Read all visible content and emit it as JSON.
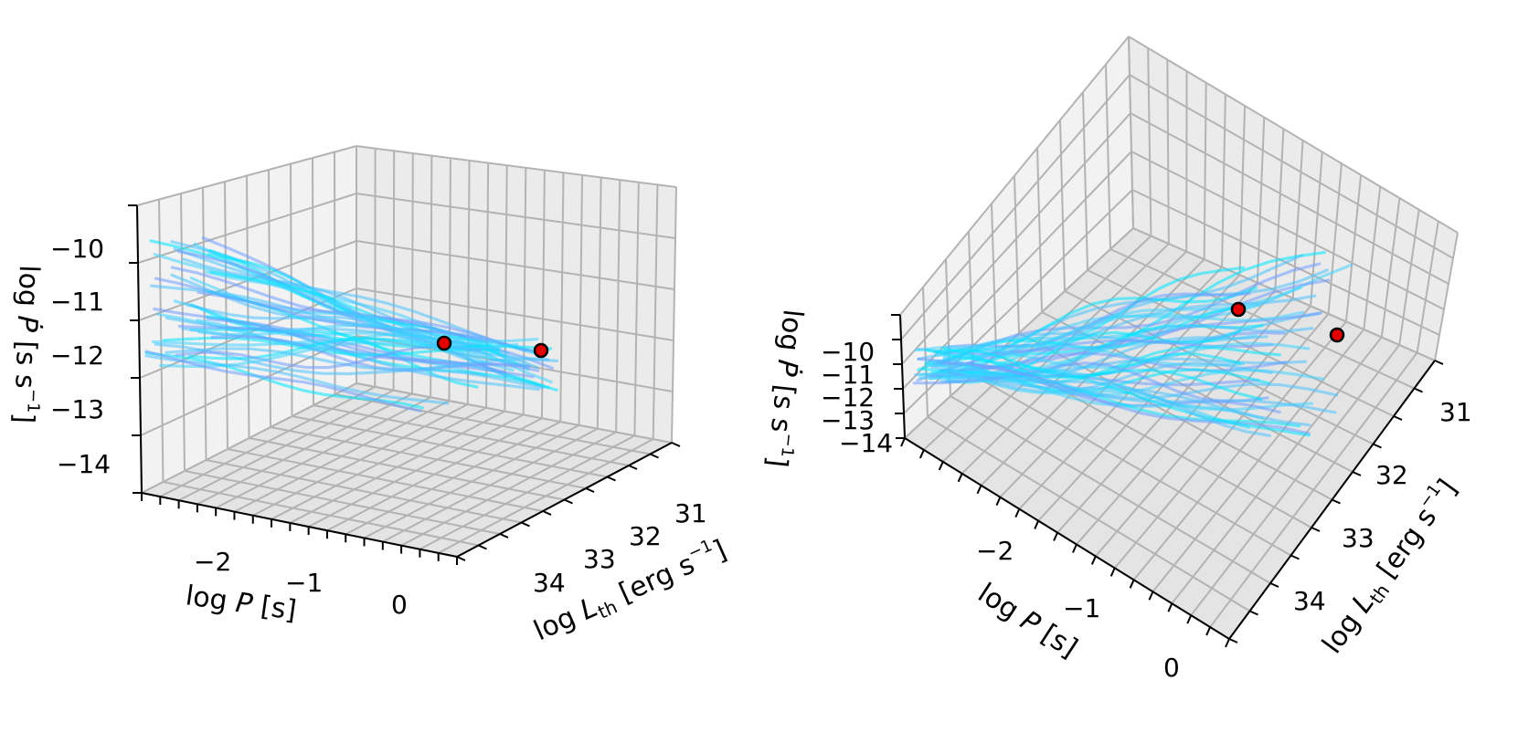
{
  "chart_data": [
    {
      "type": "line",
      "title": "",
      "xlabel": "log P [s]",
      "ylabel": "log L_th [erg s^-1]",
      "zlabel": "log Ṗ [s s^-1]",
      "x_ticks": [
        "−2",
        "−1",
        "0"
      ],
      "y_ticks": [
        "31",
        "32",
        "33",
        "34"
      ],
      "z_ticks": [
        "−10",
        "−11",
        "−12",
        "−13",
        "−14"
      ],
      "xlim": [
        -3,
        0.5
      ],
      "ylim": [
        30.5,
        34.5
      ],
      "zlim": [
        -14.5,
        -9.5
      ],
      "grid": true,
      "series_colors": [
        "#00e5ff",
        "#4dc3ff",
        "#6f9dff",
        "#3fd4ff"
      ],
      "markers": [
        {
          "x": 0.0,
          "y": 32.1,
          "z": -12.3,
          "color": "#e00000"
        },
        {
          "x": 0.4,
          "y": 31.1,
          "z": -12.6,
          "color": "#e00000"
        }
      ]
    },
    {
      "type": "line",
      "title": "",
      "xlabel": "log P [s]",
      "ylabel": "log L_th [erg s^-1]",
      "zlabel": "log Ṗ [s s^-1]",
      "x_ticks": [
        "−2",
        "−1",
        "0"
      ],
      "y_ticks": [
        "31",
        "32",
        "33",
        "34"
      ],
      "z_ticks": [
        "−10",
        "−11",
        "−12",
        "−13",
        "−14"
      ],
      "grid": true,
      "series_colors": [
        "#00e5ff",
        "#4dc3ff",
        "#6f9dff",
        "#3fd4ff"
      ],
      "markers": [
        {
          "x": 0.0,
          "y": 32.1,
          "z": -12.3,
          "color": "#e00000"
        },
        {
          "x": 0.4,
          "y": 31.1,
          "z": -12.6,
          "color": "#e00000"
        }
      ]
    }
  ],
  "labels": {
    "x_axis": {
      "prefix": "log ",
      "var": "P",
      "suffix": " [s]"
    },
    "y_axis": {
      "prefix": "log ",
      "var": "L",
      "sub": "th",
      "unit": " [erg s",
      "exp": "−1",
      "close": "]"
    },
    "z_axis": {
      "prefix": "log ",
      "var": "Ṗ",
      "unit": " [s s",
      "exp": "−1",
      "close": "]"
    }
  }
}
